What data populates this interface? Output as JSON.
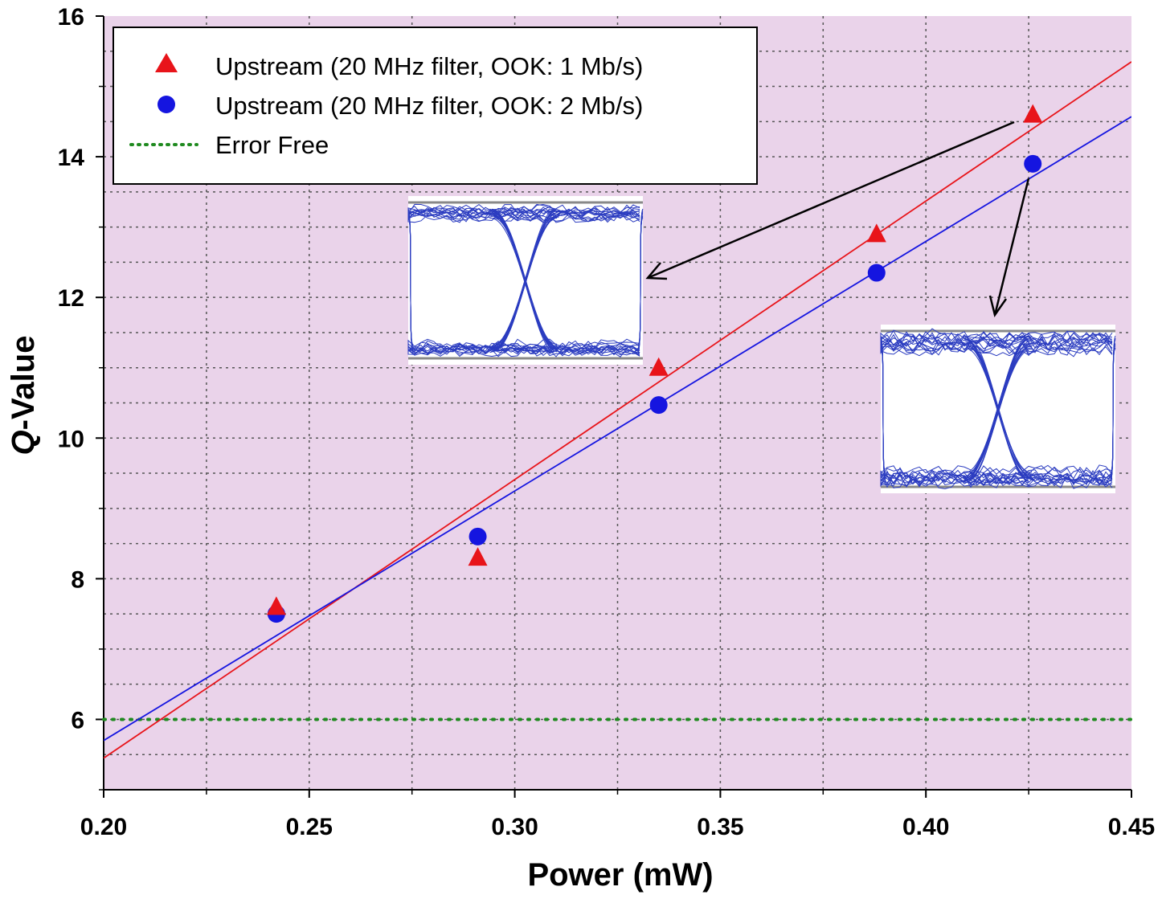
{
  "chart_data": {
    "type": "scatter",
    "xlabel": "Power (mW)",
    "ylabel_prefix": "Q",
    "ylabel_suffix": "-Value",
    "xlim": [
      0.2,
      0.45
    ],
    "ylim": [
      5,
      16
    ],
    "xticks": [
      "0.20",
      "0.25",
      "0.30",
      "0.35",
      "0.40",
      "0.45"
    ],
    "yticks": [
      "6",
      "8",
      "10",
      "12",
      "14",
      "16"
    ],
    "grid": true,
    "legend_position": "top-left",
    "series": [
      {
        "name": "Upstream  (20 MHz filter, OOK: 1 Mb/s)",
        "marker": "triangle",
        "color": "#e8141a",
        "x": [
          0.242,
          0.291,
          0.335,
          0.388,
          0.426
        ],
        "y": [
          7.6,
          8.3,
          11.0,
          12.9,
          14.6
        ],
        "fit": {
          "x": [
            0.2,
            0.45
          ],
          "y": [
            5.45,
            15.35
          ]
        }
      },
      {
        "name": "Upstream  (20 MHz filter, OOK: 2 Mb/s)",
        "marker": "circle",
        "color": "#1515e0",
        "x": [
          0.242,
          0.291,
          0.335,
          0.388,
          0.426
        ],
        "y": [
          7.5,
          8.6,
          10.47,
          12.35,
          13.9
        ],
        "fit": {
          "x": [
            0.2,
            0.45
          ],
          "y": [
            5.7,
            14.57
          ]
        }
      },
      {
        "name": "Error Free",
        "marker": "dotted-line",
        "color": "#1f8a1f",
        "y_level": 6.0
      }
    ],
    "colors": {
      "plot_background": "#ead3ea",
      "grid": "#555555",
      "eye_trace": "#2b3cc0"
    },
    "insets": [
      {
        "description_id": "eye-1mbps"
      },
      {
        "description_id": "eye-2mbps"
      }
    ]
  }
}
